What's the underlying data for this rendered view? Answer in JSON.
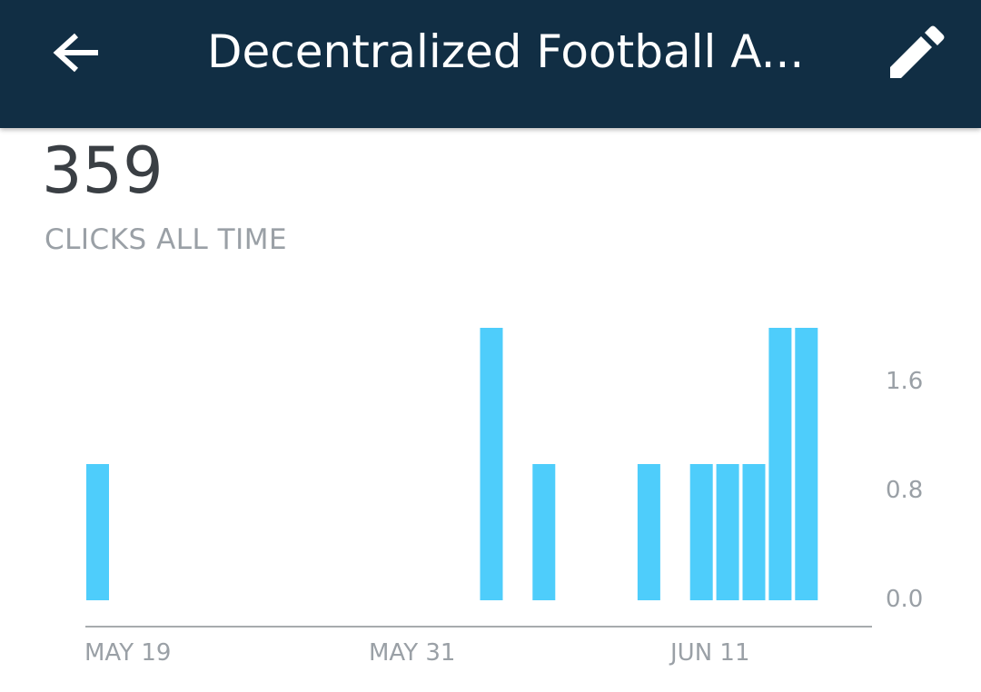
{
  "header": {
    "title": "Decentralized Football A...",
    "back_icon": "arrow-left-icon",
    "edit_icon": "pencil-icon",
    "background_color": "#112e44"
  },
  "stat": {
    "value": "359",
    "label": "CLICKS ALL TIME"
  },
  "chart_data": {
    "type": "bar",
    "bar_color": "#4ecdfb",
    "x_tick_labels": [
      "MAY 19",
      "MAY 31",
      "JUN 11"
    ],
    "y_tick_labels": [
      "1.6",
      "0.8",
      "0.0"
    ],
    "y_axis_position": "right",
    "ylim": [
      0,
      2
    ],
    "x": [
      "May 19",
      "May 20",
      "May 21",
      "May 22",
      "May 23",
      "May 24",
      "May 25",
      "May 26",
      "May 27",
      "May 28",
      "May 29",
      "May 30",
      "May 31",
      "Jun 1",
      "Jun 2",
      "Jun 3",
      "Jun 4",
      "Jun 5",
      "Jun 6",
      "Jun 7",
      "Jun 8",
      "Jun 9",
      "Jun 10",
      "Jun 11",
      "Jun 12",
      "Jun 13",
      "Jun 14",
      "Jun 15",
      "Jun 16",
      "Jun 17"
    ],
    "values": [
      1,
      0,
      0,
      0,
      0,
      0,
      0,
      0,
      0,
      0,
      0,
      0,
      0,
      0,
      0,
      2,
      0,
      1,
      0,
      0,
      0,
      1,
      0,
      1,
      1,
      1,
      2,
      2,
      0,
      0
    ]
  }
}
